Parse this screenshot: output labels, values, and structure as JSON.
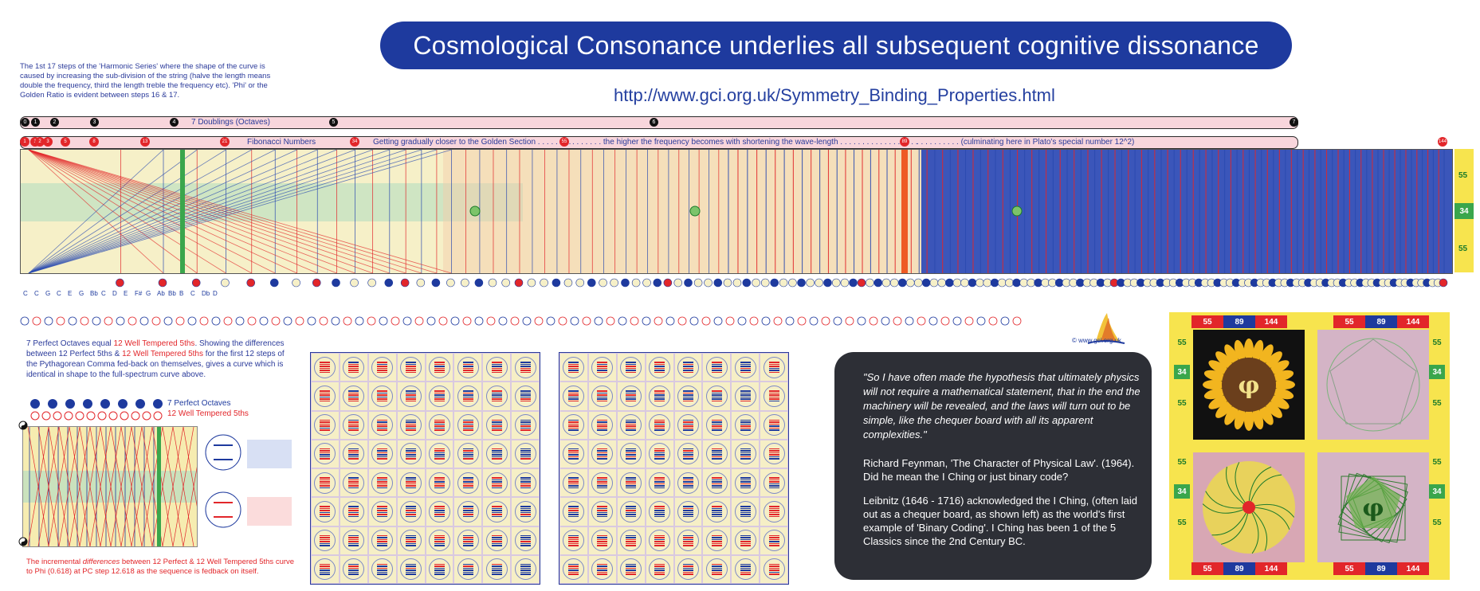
{
  "header": {
    "title": "Cosmological Consonance underlies all subsequent cognitive dissonance",
    "url": "http://www.gci.org.uk/Symmetry_Binding_Properties.html"
  },
  "intro_text": "The 1st 17 steps of the 'Harmonic Series' where the shape of the curve is caused by increasing the sub-division of the string (halve the length means double the frequency, third the length treble the frequency etc). 'Phi' or the Golden Ratio is evident between steps 16 & 17.",
  "octave_band": {
    "label": "7 Doublings (Octaves)",
    "markers": [
      "0",
      "1",
      "2",
      "3",
      "4",
      "5",
      "6",
      "7"
    ]
  },
  "fib_band": {
    "label_1": "Fibonacci Numbers",
    "label_2": "Getting gradually closer to the Golden Section . . . . . . . .",
    "label_3": ". . . . . . . the higher the frequency becomes with shortening the wave-length . . . . . . . . . . . . . . . . . .",
    "label_4": ". . . . . . . . . . (culminating here in Plato's special number 12^2)",
    "markers": [
      "1",
      "1",
      "2",
      "3",
      "5",
      "8",
      "13",
      "21",
      "34",
      "55",
      "89",
      "144"
    ]
  },
  "side_scale": [
    "55",
    "34",
    "55"
  ],
  "note_labels": [
    "C",
    "C",
    "G",
    "C",
    "E",
    "G",
    "Bb",
    "C",
    "D",
    "E",
    "F#",
    "G",
    "Ab",
    "Bb",
    "B",
    "C",
    "Db",
    "D"
  ],
  "pythagorean_text": {
    "part1": "7 Perfect Octaves equal ",
    "part2": "12 Well Tempered 5ths",
    "part3": ". Showing the differences between 12 Perfect 5ths & ",
    "part4": "12 Well Tempered 5ths",
    "part5": " for the first 12 steps of the Pythagorean Comma fed-back on themselves, gives a curve which is identical in shape to the full-spectrum curve above."
  },
  "mini_legend": {
    "octaves": "7 Perfect Octaves",
    "fifths": "12 Well Tempered 5ths"
  },
  "incremental_text": {
    "part1": "The incremental ",
    "part2": "differences",
    "part3": " between 12 Perfect & 12 Well Tempered 5ths curve to Phi (0.618) at PC step 12.618 as the sequence is fedback on itself."
  },
  "logo": {
    "caption": "© www.gci.org.uk"
  },
  "quote": {
    "text": "\"So I have often made the hypothesis that ultimately physics will not require a mathematical statement, that in the end the machinery will be revealed, and the laws will turn out to be simple, like the chequer board with all its apparent complexities.\"",
    "attribution": "Richard Feynman, 'The Character of Physical Law'. (1964). Did he mean the I Ching or just binary code?",
    "leibniz": "Leibnitz (1646 - 1716) acknowledged the I Ching, (often laid out as a chequer board, as shown left) as the world's first example of 'Binary Coding'. I Ching has been 1 of the 5 Classics since the 2nd Century BC."
  },
  "mandala": {
    "top_numbers": [
      "55",
      "89",
      "144"
    ],
    "side_numbers": [
      "55",
      "34",
      "55"
    ],
    "phi": "φ"
  },
  "colors": {
    "brand_blue": "#1e3a9e",
    "accent_red": "#e2262a",
    "band_pink": "#f8d6dc",
    "field_yellow": "#f6f0c8",
    "green": "#4caf50",
    "quote_bg": "#2d2f36"
  }
}
